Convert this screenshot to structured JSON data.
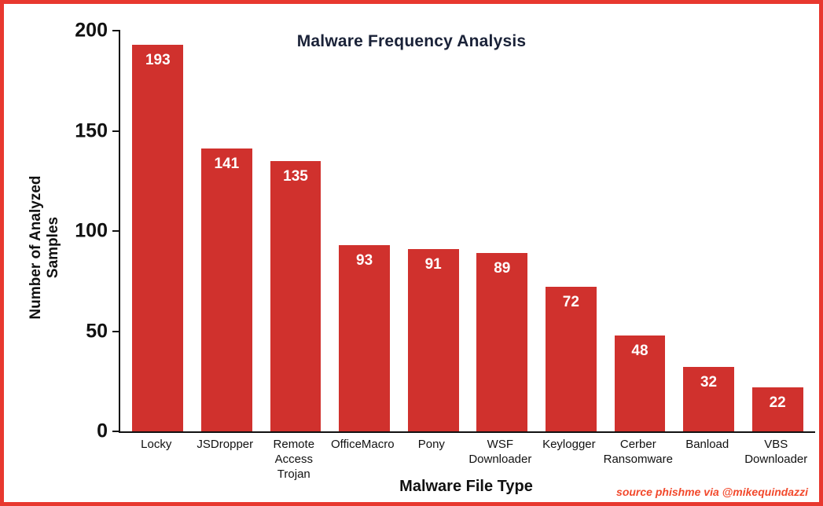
{
  "chart_data": {
    "type": "bar",
    "title": "Malware Frequency Analysis",
    "xlabel": "Malware File Type",
    "ylabel": "Number of Analyzed Samples",
    "categories": [
      "Locky",
      "JSDropper",
      "Remote Access Trojan",
      "OfficeMacro",
      "Pony",
      "WSF Downloader",
      "Keylogger",
      "Cerber Ransomware",
      "Banload",
      "VBS Downloader"
    ],
    "values": [
      193,
      141,
      135,
      93,
      91,
      89,
      72,
      48,
      32,
      22
    ],
    "ylim": [
      0,
      200
    ],
    "yticks": [
      0,
      50,
      100,
      150,
      200
    ],
    "grid": false,
    "legend": false,
    "bar_color": "#d0312d",
    "value_label_color": "#ffffff"
  },
  "annotations": {
    "source": "source phishme via @mikequindazzi"
  },
  "colors": {
    "frame_border": "#e8382f",
    "title": "#1a2238",
    "axis": "#111111",
    "source_text": "#f2492c",
    "background": "#ffffff"
  }
}
